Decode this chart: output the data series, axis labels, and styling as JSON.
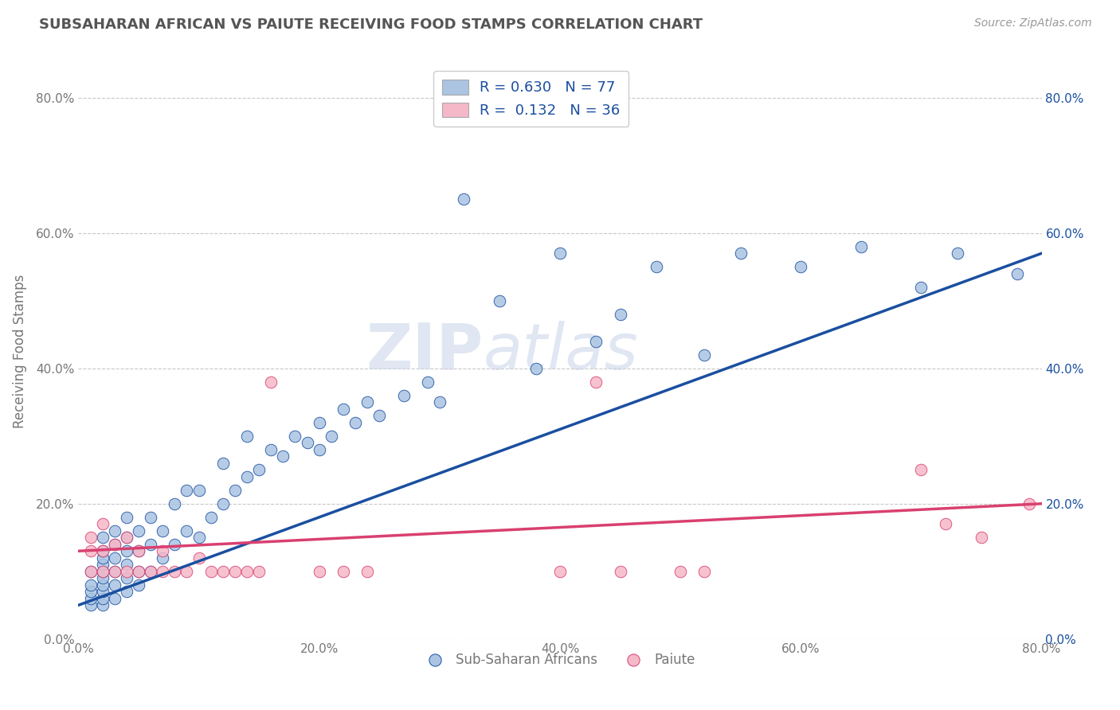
{
  "title": "SUBSAHARAN AFRICAN VS PAIUTE RECEIVING FOOD STAMPS CORRELATION CHART",
  "source_text": "Source: ZipAtlas.com",
  "ylabel": "Receiving Food Stamps",
  "watermark_zip": "ZIP",
  "watermark_atlas": "atlas",
  "blue_R": 0.63,
  "blue_N": 77,
  "pink_R": 0.132,
  "pink_N": 36,
  "blue_color": "#aac4e2",
  "pink_color": "#f5b8c8",
  "blue_line_color": "#1a4fa0",
  "pink_line_color": "#d94070",
  "x_min": 0.0,
  "x_max": 0.8,
  "y_min": 0.0,
  "y_max": 0.85,
  "blue_scatter_x": [
    0.01,
    0.01,
    0.01,
    0.01,
    0.01,
    0.02,
    0.02,
    0.02,
    0.02,
    0.02,
    0.02,
    0.02,
    0.02,
    0.02,
    0.02,
    0.03,
    0.03,
    0.03,
    0.03,
    0.03,
    0.03,
    0.04,
    0.04,
    0.04,
    0.04,
    0.04,
    0.04,
    0.05,
    0.05,
    0.05,
    0.05,
    0.06,
    0.06,
    0.06,
    0.07,
    0.07,
    0.08,
    0.08,
    0.09,
    0.09,
    0.1,
    0.1,
    0.11,
    0.12,
    0.12,
    0.13,
    0.14,
    0.14,
    0.15,
    0.16,
    0.17,
    0.18,
    0.19,
    0.2,
    0.2,
    0.21,
    0.22,
    0.23,
    0.24,
    0.25,
    0.27,
    0.29,
    0.3,
    0.32,
    0.35,
    0.38,
    0.4,
    0.43,
    0.45,
    0.48,
    0.52,
    0.55,
    0.6,
    0.65,
    0.7,
    0.73,
    0.78
  ],
  "blue_scatter_y": [
    0.05,
    0.06,
    0.07,
    0.08,
    0.1,
    0.05,
    0.06,
    0.07,
    0.08,
    0.09,
    0.1,
    0.11,
    0.12,
    0.13,
    0.15,
    0.06,
    0.08,
    0.1,
    0.12,
    0.14,
    0.16,
    0.07,
    0.09,
    0.11,
    0.13,
    0.15,
    0.18,
    0.08,
    0.1,
    0.13,
    0.16,
    0.1,
    0.14,
    0.18,
    0.12,
    0.16,
    0.14,
    0.2,
    0.16,
    0.22,
    0.15,
    0.22,
    0.18,
    0.2,
    0.26,
    0.22,
    0.24,
    0.3,
    0.25,
    0.28,
    0.27,
    0.3,
    0.29,
    0.28,
    0.32,
    0.3,
    0.34,
    0.32,
    0.35,
    0.33,
    0.36,
    0.38,
    0.35,
    0.65,
    0.5,
    0.4,
    0.57,
    0.44,
    0.48,
    0.55,
    0.42,
    0.57,
    0.55,
    0.58,
    0.52,
    0.57,
    0.54
  ],
  "pink_scatter_x": [
    0.01,
    0.01,
    0.01,
    0.02,
    0.02,
    0.02,
    0.03,
    0.03,
    0.04,
    0.04,
    0.05,
    0.05,
    0.06,
    0.07,
    0.07,
    0.08,
    0.09,
    0.1,
    0.11,
    0.12,
    0.13,
    0.14,
    0.15,
    0.16,
    0.2,
    0.22,
    0.24,
    0.4,
    0.43,
    0.45,
    0.5,
    0.52,
    0.7,
    0.72,
    0.75,
    0.79
  ],
  "pink_scatter_y": [
    0.1,
    0.13,
    0.15,
    0.1,
    0.13,
    0.17,
    0.1,
    0.14,
    0.1,
    0.15,
    0.1,
    0.13,
    0.1,
    0.1,
    0.13,
    0.1,
    0.1,
    0.12,
    0.1,
    0.1,
    0.1,
    0.1,
    0.1,
    0.38,
    0.1,
    0.1,
    0.1,
    0.1,
    0.38,
    0.1,
    0.1,
    0.1,
    0.25,
    0.17,
    0.15,
    0.2
  ],
  "blue_line_x": [
    0.0,
    0.8
  ],
  "blue_line_y": [
    0.05,
    0.57
  ],
  "pink_line_x": [
    0.0,
    0.8
  ],
  "pink_line_y": [
    0.13,
    0.2
  ],
  "ytick_labels": [
    "0.0%",
    "20.0%",
    "40.0%",
    "60.0%",
    "80.0%"
  ],
  "ytick_values": [
    0.0,
    0.2,
    0.4,
    0.6,
    0.8
  ],
  "xtick_labels": [
    "0.0%",
    "20.0%",
    "40.0%",
    "60.0%",
    "80.0%"
  ],
  "xtick_values": [
    0.0,
    0.2,
    0.4,
    0.6,
    0.8
  ],
  "grid_color": "#c8c8c8",
  "background_color": "#ffffff",
  "legend_label_blue": "Sub-Saharan Africans",
  "legend_label_pink": "Paiute",
  "title_color": "#555555",
  "tick_color": "#777777",
  "right_tick_color": "#1a4fa0",
  "source_color": "#999999"
}
